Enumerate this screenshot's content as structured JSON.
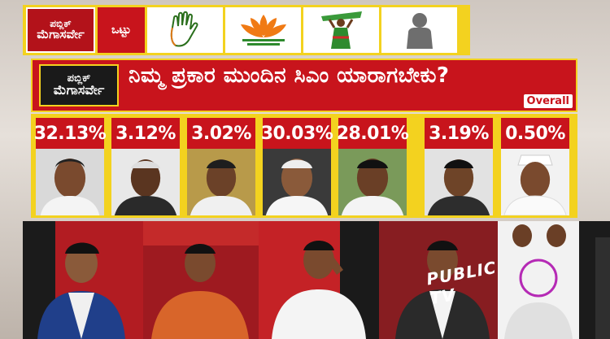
{
  "topbar": {
    "logo_line1": "ಪಬ್ಲಿಕ್",
    "logo_line2": "ಮೆಗಾಸರ್ವೇ",
    "total_label": "ಒಟ್ಟು",
    "party_icons": [
      "congress-hand-icon",
      "bjp-lotus-icon",
      "jds-farmer-woman-icon",
      "others-person-icon"
    ]
  },
  "header": {
    "logo_line1": "ಪಬ್ಲಿಕ್",
    "logo_line2": "ಮೆಗಾಸರ್ವೇ",
    "question": "ನಿಮ್ಮ ಪ್ರಕಾರ ಮುಂದಿನ ಸಿಎಂ ಯಾರಾಗಬೇಕು?",
    "overall_tag": "Overall"
  },
  "candidates": [
    {
      "percent": "32.13%"
    },
    {
      "percent": "3.12%"
    },
    {
      "percent": "3.02%"
    },
    {
      "percent": "30.03%"
    },
    {
      "percent": "28.01%"
    },
    {
      "percent": "3.19%"
    },
    {
      "percent": "0.50%"
    }
  ],
  "panel": {
    "channel_label": "PUBLIC TV"
  },
  "colors": {
    "red": "#c8141c",
    "yellow": "#f3d21f",
    "dark": "#1a1a1a"
  }
}
